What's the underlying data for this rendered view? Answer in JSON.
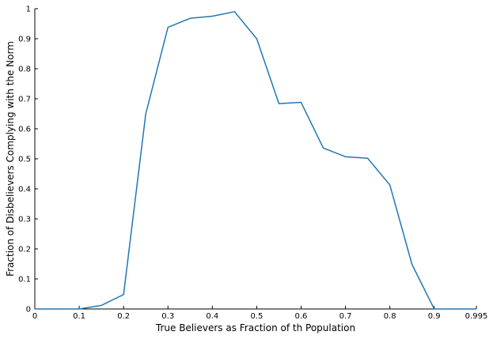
{
  "chart_data": {
    "type": "line",
    "title": "",
    "xlabel": "True Believers as Fraction of th Population",
    "ylabel": "Fraction of Disbelievers Complying with the Norm",
    "xlim": [
      0,
      0.995
    ],
    "ylim": [
      0,
      1
    ],
    "grid": false,
    "legend": "none",
    "x_ticks": [
      "0",
      "0.1",
      "0.2",
      "0.3",
      "0.4",
      "0.5",
      "0.6",
      "0.7",
      "0.8",
      "0.9",
      "0.995"
    ],
    "y_ticks": [
      "0",
      "0.1",
      "0.2",
      "0.3",
      "0.4",
      "0.5",
      "0.6",
      "0.7",
      "0.8",
      "0.9",
      "1"
    ],
    "series": [
      {
        "color": "#1f77b4",
        "x": [
          0,
          0.05,
          0.1,
          0.15,
          0.2,
          0.25,
          0.3,
          0.35,
          0.4,
          0.45,
          0.5,
          0.55,
          0.6,
          0.65,
          0.7,
          0.75,
          0.8,
          0.85,
          0.9,
          0.95,
          0.995
        ],
        "y": [
          0,
          0,
          0,
          0.012,
          0.048,
          0.65,
          0.938,
          0.968,
          0.975,
          0.99,
          0.9,
          0.684,
          0.688,
          0.536,
          0.507,
          0.502,
          0.413,
          0.148,
          0,
          0,
          0
        ]
      }
    ]
  }
}
